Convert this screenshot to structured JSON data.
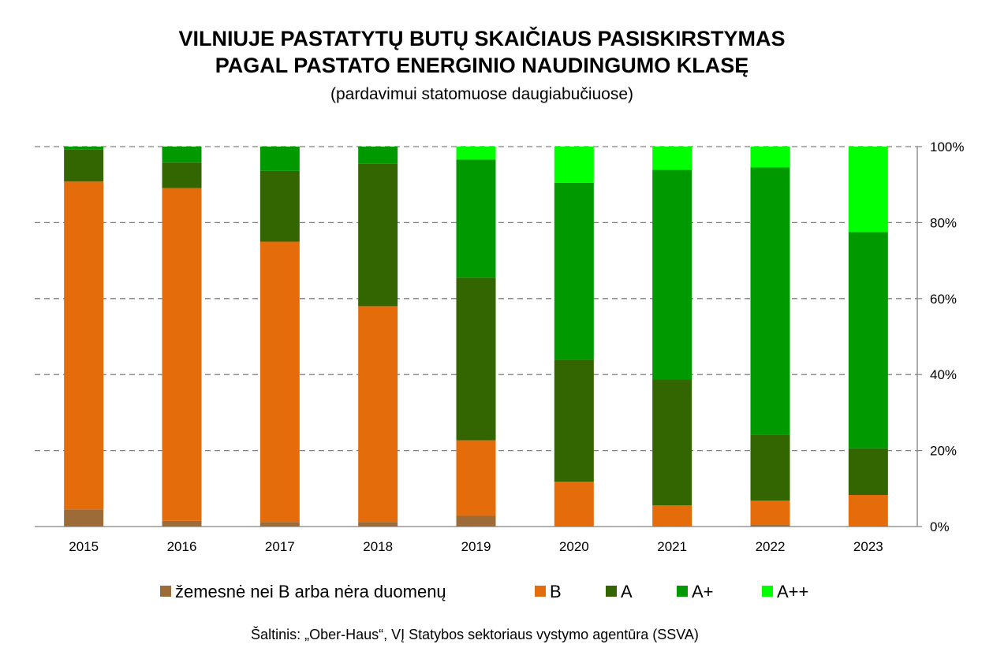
{
  "chart_data": {
    "type": "bar",
    "stacked": true,
    "title_line1": "VILNIUJE PASTATYTŲ BUTŲ SKAIČIAUS PASISKIRSTYMAS",
    "title_line2": "PAGAL PASTATO ENERGINIO NAUDINGUMO KLASĘ",
    "subtitle": "(pardavimui statomuose daugiabučiuose)",
    "source": "Šaltinis: „Ober-Haus“, VĮ Statybos sektoriaus vystymo agentūra (SSVA)",
    "categories": [
      "2015",
      "2016",
      "2017",
      "2018",
      "2019",
      "2020",
      "2021",
      "2022",
      "2023"
    ],
    "y_ticks": [
      "0%",
      "20%",
      "40%",
      "60%",
      "80%",
      "100%"
    ],
    "ylim": [
      0,
      100
    ],
    "y_axis_side": "right",
    "grid": "dashed horizontal",
    "legend_position": "bottom",
    "series": [
      {
        "name": "žemesnė nei B arba nėra duomenų",
        "color": "#9c6b38",
        "values": [
          4.5,
          1.5,
          1.2,
          1.2,
          2.8,
          0,
          0,
          0.5,
          0
        ]
      },
      {
        "name": "B",
        "color": "#e46c0a",
        "values": [
          86.3,
          87.6,
          73.8,
          56.8,
          19.9,
          11.8,
          5.6,
          6.3,
          8.3
        ]
      },
      {
        "name": "A",
        "color": "#336600",
        "values": [
          8.4,
          6.7,
          18.6,
          37.5,
          42.8,
          32.1,
          33.1,
          17.4,
          12.3
        ]
      },
      {
        "name": "A+",
        "color": "#009900",
        "values": [
          0.8,
          4.2,
          6.4,
          4.5,
          31.1,
          46.6,
          55.2,
          70.3,
          56.9
        ]
      },
      {
        "name": "A++",
        "color": "#00ff00",
        "values": [
          0,
          0,
          0,
          0,
          3.4,
          9.5,
          6.1,
          5.5,
          22.5
        ]
      }
    ]
  }
}
